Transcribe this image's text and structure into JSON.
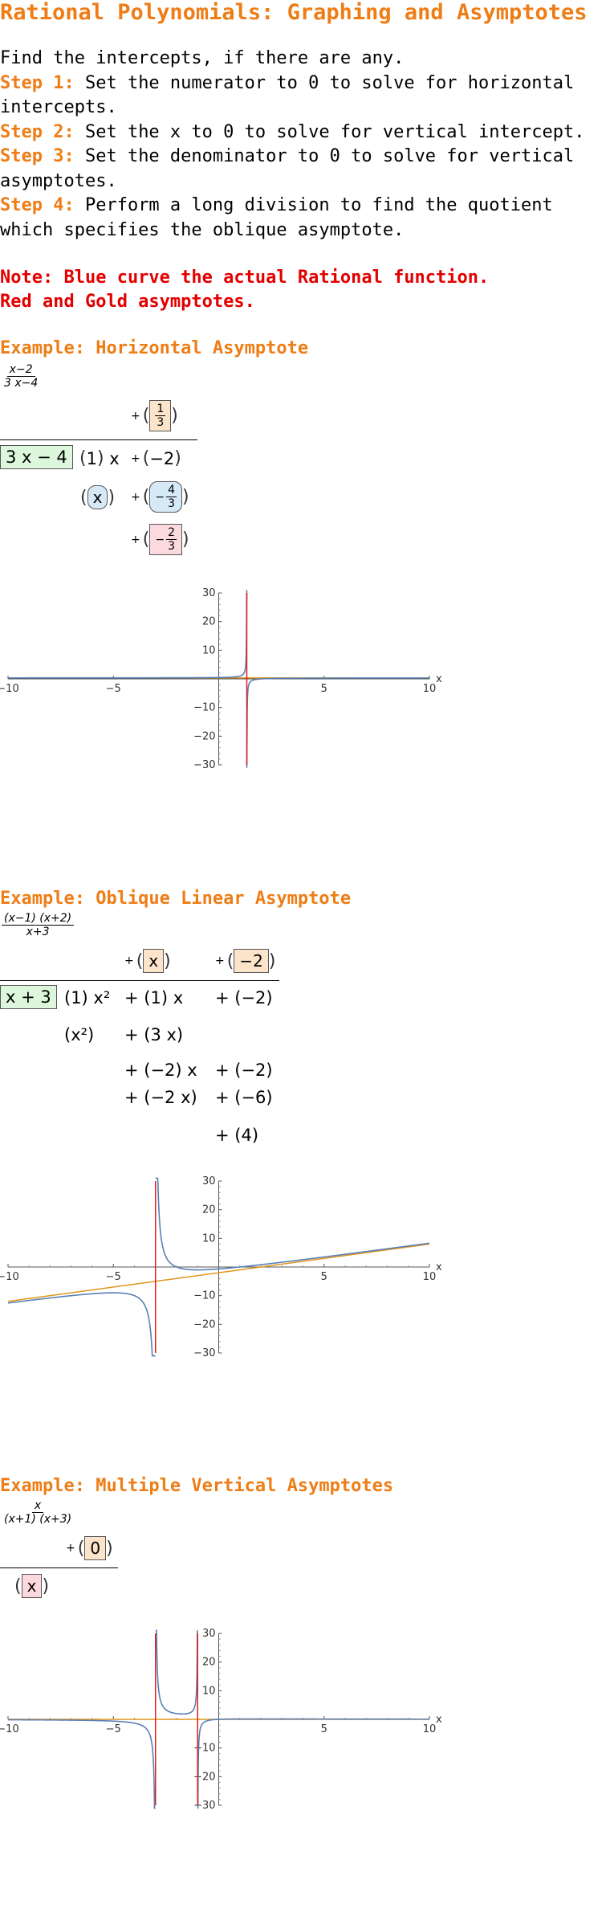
{
  "title": "Rational Polynomials: Graphing and Asymptotes",
  "intro": {
    "line1": "Find the intercepts, if there are any.",
    "steps": [
      {
        "label": "Step 1:",
        "text": " Set the numerator to 0 to solve for horizontal intercepts."
      },
      {
        "label": "Step 2:",
        "text": " Set the x to 0 to solve for vertical intercept."
      },
      {
        "label": "Step 3:",
        "text": " Set the denominator to 0 to solve for vertical asymptotes."
      },
      {
        "label": "Step 4:",
        "text": " Perform a long division to find the quotient which specifies the oblique asymptote."
      }
    ]
  },
  "notes": [
    "Note: Blue curve the actual Rational function.",
    "Red and Gold asymptotes."
  ],
  "colors": {
    "title": "#ee7d16",
    "note": "#e30000",
    "curve": "#5a7fb5",
    "asymptote_red": "#e0201b",
    "asymptote_gold": "#e0951b"
  },
  "examples": [
    {
      "heading": "Example: Horizontal Asymptote",
      "function": {
        "num": "x−2",
        "den": "3 x−4"
      },
      "division": {
        "divisor": "3 x − 4",
        "quotient": [
          {
            "value": "1",
            "den": "3",
            "kind": "fraction"
          }
        ],
        "dividend": [
          {
            "coef": "1",
            "var": "x"
          },
          {
            "coef": "−2",
            "var": ""
          }
        ],
        "steps": [
          {
            "left": "x",
            "right": "−4/3"
          },
          {
            "remainder": "−2/3"
          }
        ]
      },
      "plot": {
        "xlim": [
          -10,
          10
        ],
        "ylim": [
          -30,
          30
        ],
        "xticks": [
          "−10",
          "−5",
          "5",
          "10"
        ],
        "yticks": [
          "30",
          "20",
          "10",
          "−10",
          "−20",
          "−30"
        ],
        "xlabel": "x",
        "vertical_asymptotes": [
          1.3333
        ],
        "oblique": {
          "slope": 0,
          "intercept": 0.3333
        }
      }
    },
    {
      "heading": "Example: Oblique Linear Asymptote",
      "function": {
        "num": "(x−1) (x+2)",
        "den": "x+3"
      },
      "division": {
        "divisor": "x + 3",
        "quotient": [
          "x",
          "−2"
        ],
        "dividend": [
          "(1) x²",
          "+ (1) x",
          "+ (−2)"
        ],
        "rows": [
          [
            "(x²)",
            "+ (3 x)"
          ],
          [
            "+ (−2) x",
            "+ (−2)"
          ],
          [
            "+ (−2 x)",
            "+ (−6)"
          ],
          [
            "",
            "+ (4)"
          ]
        ]
      },
      "plot": {
        "xlim": [
          -10,
          10
        ],
        "ylim": [
          -30,
          30
        ],
        "xticks": [
          "−10",
          "−5",
          "5",
          "10"
        ],
        "yticks": [
          "30",
          "20",
          "10",
          "−10",
          "−20",
          "−30"
        ],
        "xlabel": "x",
        "vertical_asymptotes": [
          -3
        ],
        "oblique": {
          "slope": 1,
          "intercept": -2
        }
      }
    },
    {
      "heading": "Example: Multiple Vertical Asymptotes",
      "function": {
        "num": "x",
        "den": "(x+1) (x+3)"
      },
      "division": {
        "quotient": [
          "0"
        ],
        "remainder": "x"
      },
      "plot": {
        "xlim": [
          -10,
          10
        ],
        "ylim": [
          -30,
          30
        ],
        "xticks": [
          "−10",
          "−5",
          "5",
          "10"
        ],
        "yticks": [
          "30",
          "20",
          "10",
          "−10",
          "−20",
          "−30"
        ],
        "xlabel": "x",
        "vertical_asymptotes": [
          -3,
          -1
        ],
        "oblique": {
          "slope": 0,
          "intercept": 0
        }
      }
    }
  ]
}
